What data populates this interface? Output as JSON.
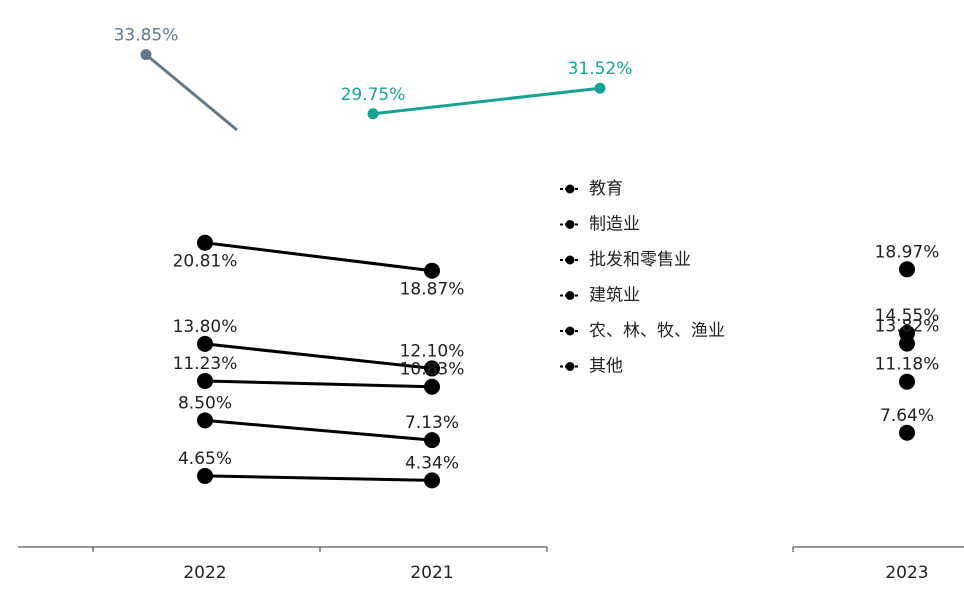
{
  "chart_data": [
    {
      "type": "line",
      "categories": [
        "2022",
        "2021"
      ],
      "ylim": [
        0,
        35
      ],
      "series": [
        {
          "name": "教育",
          "color": "#000000",
          "values": [
            20.81,
            18.87
          ],
          "value_labels": [
            "20.81%",
            "18.87%"
          ]
        },
        {
          "name": "制造业",
          "color": "#000000",
          "values": [
            13.8,
            12.1
          ],
          "value_labels": [
            "13.80%",
            "12.10%"
          ]
        },
        {
          "name": "批发和零售业",
          "color": "#000000",
          "values": [
            11.23,
            10.83
          ],
          "value_labels": [
            "11.23%",
            "10.83%"
          ]
        },
        {
          "name": "建筑业",
          "color": "#000000",
          "values": [
            8.5,
            7.13
          ],
          "value_labels": [
            "8.50%",
            "7.13%"
          ]
        },
        {
          "name": "农、林、牧、渔业",
          "color": "#000000",
          "values": [
            4.65,
            4.34
          ],
          "value_labels": [
            "4.65%",
            "4.34%"
          ]
        },
        {
          "name": "其他",
          "color": "#000000",
          "values": [
            null,
            null
          ],
          "value_labels": [
            null,
            null
          ]
        }
      ],
      "annotations": [
        {
          "color": "#64788a",
          "value": 33.85,
          "label": "33.85%"
        },
        {
          "color": "#17a394",
          "value": 29.75,
          "label": "29.75%"
        },
        {
          "color": "#17a394",
          "value": 31.52,
          "label": "31.52%"
        }
      ]
    },
    {
      "type": "line",
      "categories": [
        "2023"
      ],
      "ylim": [
        0,
        35
      ],
      "series": [
        {
          "color": "#000000",
          "values": [
            18.97
          ],
          "value_labels": [
            "18.97%"
          ]
        },
        {
          "color": "#000000",
          "values": [
            14.55
          ],
          "value_labels": [
            "14.55%"
          ]
        },
        {
          "color": "#000000",
          "values": [
            13.82
          ],
          "value_labels": [
            "13.82%"
          ]
        },
        {
          "color": "#000000",
          "values": [
            11.18
          ],
          "value_labels": [
            "11.18%"
          ]
        },
        {
          "color": "#000000",
          "values": [
            7.64
          ],
          "value_labels": [
            "7.64%"
          ]
        }
      ]
    }
  ]
}
